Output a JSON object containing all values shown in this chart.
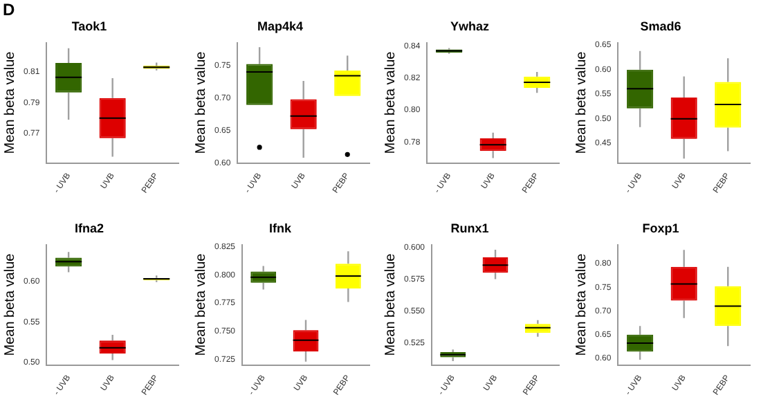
{
  "chart_data": [
    {
      "type": "box",
      "title": "Taok1",
      "ylabel": "Mean beta value",
      "annotations": [
        "D"
      ],
      "categories": [
        "- UVB",
        "UVB",
        "PEBP"
      ],
      "colors": [
        "#336600",
        "#dd0000",
        "#cccc00"
      ],
      "ylim": [
        0.751,
        0.829
      ],
      "yticks": [
        0.77,
        0.79,
        0.81
      ],
      "boxes": [
        {
          "low": 0.779,
          "q1": 0.7966,
          "median": 0.8065,
          "q3": 0.8158,
          "high": 0.8254
        },
        {
          "low": 0.755,
          "q1": 0.767,
          "median": 0.78,
          "q3": 0.793,
          "high": 0.806
        },
        {
          "low": 0.811,
          "q1": 0.812,
          "median": 0.813,
          "q3": 0.814,
          "high": 0.816
        }
      ]
    },
    {
      "type": "box",
      "title": "Map4k4",
      "ylabel": "Mean beta value",
      "categories": [
        "- UVB",
        "UVB",
        "PEBP"
      ],
      "colors": [
        "#336600",
        "#dd0000",
        "#ffff00"
      ],
      "ylim": [
        0.6,
        0.785
      ],
      "yticks": [
        {
          "value": 0.6,
          "label": "0.60"
        },
        0.65,
        {
          "value": 0.7,
          "label": "0.70"
        },
        0.75
      ],
      "boxes": [
        {
          "low": 0.689,
          "q1": 0.689,
          "median": 0.74,
          "q3": 0.752,
          "high": 0.778,
          "outliers": [
            0.624
          ]
        },
        {
          "low": 0.608,
          "q1": 0.652,
          "median": 0.672,
          "q3": 0.698,
          "high": 0.726
        },
        {
          "low": 0.703,
          "q1": 0.703,
          "median": 0.734,
          "q3": 0.742,
          "high": 0.765,
          "outliers": [
            0.613
          ]
        }
      ]
    },
    {
      "type": "box",
      "title": "Ywhaz",
      "ylabel": "Mean beta value",
      "categories": [
        "- UVB",
        "UVB",
        "PEBP"
      ],
      "colors": [
        "#336600",
        "#dd0000",
        "#ffff00"
      ],
      "ylim": [
        0.767,
        0.842
      ],
      "yticks": [
        0.78,
        {
          "value": 0.8,
          "label": "0.80"
        },
        0.82,
        0.84
      ],
      "boxes": [
        {
          "low": 0.835,
          "q1": 0.8358,
          "median": 0.8369,
          "q3": 0.8377,
          "high": 0.8386
        },
        {
          "low": 0.77,
          "q1": 0.7744,
          "median": 0.7783,
          "q3": 0.7823,
          "high": 0.7859
        },
        {
          "low": 0.8107,
          "q1": 0.8138,
          "median": 0.8172,
          "q3": 0.8208,
          "high": 0.8237
        }
      ]
    },
    {
      "type": "box",
      "title": "Smad6",
      "ylabel": "Mean beta value",
      "categories": [
        "- UVB",
        "UVB",
        "PEBP"
      ],
      "colors": [
        "#336600",
        "#dd0000",
        "#ffff00"
      ],
      "ylim": [
        0.41,
        0.655
      ],
      "yticks": [
        0.45,
        {
          "value": 0.5,
          "label": "0.50"
        },
        0.55,
        {
          "value": 0.6,
          "label": "0.60"
        },
        0.65
      ],
      "boxes": [
        {
          "low": 0.483,
          "q1": 0.521,
          "median": 0.561,
          "q3": 0.6,
          "high": 0.638
        },
        {
          "low": 0.419,
          "q1": 0.459,
          "median": 0.5,
          "q3": 0.543,
          "high": 0.586
        },
        {
          "low": 0.434,
          "q1": 0.482,
          "median": 0.529,
          "q3": 0.575,
          "high": 0.623
        }
      ]
    },
    {
      "type": "box",
      "title": "Ifna2",
      "ylabel": "Mean beta value",
      "categories": [
        "- UVB",
        "UVB",
        "PEBP"
      ],
      "colors": [
        "#336600",
        "#dd0000",
        "#cccc00"
      ],
      "ylim": [
        0.497,
        0.645
      ],
      "yticks": [
        {
          "value": 0.5,
          "label": "0.50"
        },
        0.55,
        {
          "value": 0.6,
          "label": "0.60"
        }
      ],
      "boxes": [
        {
          "low": 0.611,
          "q1": 0.618,
          "median": 0.624,
          "q3": 0.629,
          "high": 0.636
        },
        {
          "low": 0.503,
          "q1": 0.511,
          "median": 0.518,
          "q3": 0.527,
          "high": 0.534
        },
        {
          "low": 0.599,
          "q1": 0.601,
          "median": 0.603,
          "q3": 0.604,
          "high": 0.607
        }
      ]
    },
    {
      "type": "box",
      "title": "Ifnk",
      "ylabel": "Mean beta value",
      "categories": [
        "- UVB",
        "UVB",
        "PEBP"
      ],
      "colors": [
        "#336600",
        "#dd0000",
        "#ffff00"
      ],
      "ylim": [
        0.72,
        0.827
      ],
      "yticks": [
        0.725,
        {
          "value": 0.75,
          "label": "0.750"
        },
        0.775,
        {
          "value": 0.8,
          "label": "0.800"
        },
        0.825
      ],
      "boxes": [
        {
          "low": 0.787,
          "q1": 0.793,
          "median": 0.798,
          "q3": 0.803,
          "high": 0.808
        },
        {
          "low": 0.723,
          "q1": 0.732,
          "median": 0.742,
          "q3": 0.751,
          "high": 0.76
        },
        {
          "low": 0.776,
          "q1": 0.788,
          "median": 0.799,
          "q3": 0.81,
          "high": 0.821
        }
      ]
    },
    {
      "type": "box",
      "title": "Runx1",
      "ylabel": "Mean beta value",
      "categories": [
        "- UVB",
        "UVB",
        "PEBP"
      ],
      "colors": [
        "#336600",
        "#dd0000",
        "#ffff00"
      ],
      "ylim": [
        0.508,
        0.602
      ],
      "yticks": [
        0.525,
        {
          "value": 0.55,
          "label": "0.550"
        },
        0.575,
        {
          "value": 0.6,
          "label": "0.600"
        }
      ],
      "boxes": [
        {
          "low": 0.511,
          "q1": 0.514,
          "median": 0.516,
          "q3": 0.518,
          "high": 0.52
        },
        {
          "low": 0.575,
          "q1": 0.58,
          "median": 0.586,
          "q3": 0.592,
          "high": 0.598
        },
        {
          "low": 0.53,
          "q1": 0.533,
          "median": 0.537,
          "q3": 0.54,
          "high": 0.543
        }
      ]
    },
    {
      "type": "box",
      "title": "Foxp1",
      "ylabel": "Mean beta value",
      "categories": [
        "- UVB",
        "UVB",
        "PEBP"
      ],
      "colors": [
        "#336600",
        "#dd0000",
        "#ffff00"
      ],
      "ylim": [
        0.586,
        0.84
      ],
      "yticks": [
        {
          "value": 0.6,
          "label": "0.60"
        },
        0.65,
        {
          "value": 0.7,
          "label": "0.70"
        },
        0.75,
        {
          "value": 0.8,
          "label": "0.80"
        }
      ],
      "boxes": [
        {
          "low": 0.597,
          "q1": 0.614,
          "median": 0.632,
          "q3": 0.65,
          "high": 0.668
        },
        {
          "low": 0.685,
          "q1": 0.722,
          "median": 0.757,
          "q3": 0.793,
          "high": 0.829
        },
        {
          "low": 0.626,
          "q1": 0.668,
          "median": 0.71,
          "q3": 0.752,
          "high": 0.793
        }
      ]
    }
  ]
}
